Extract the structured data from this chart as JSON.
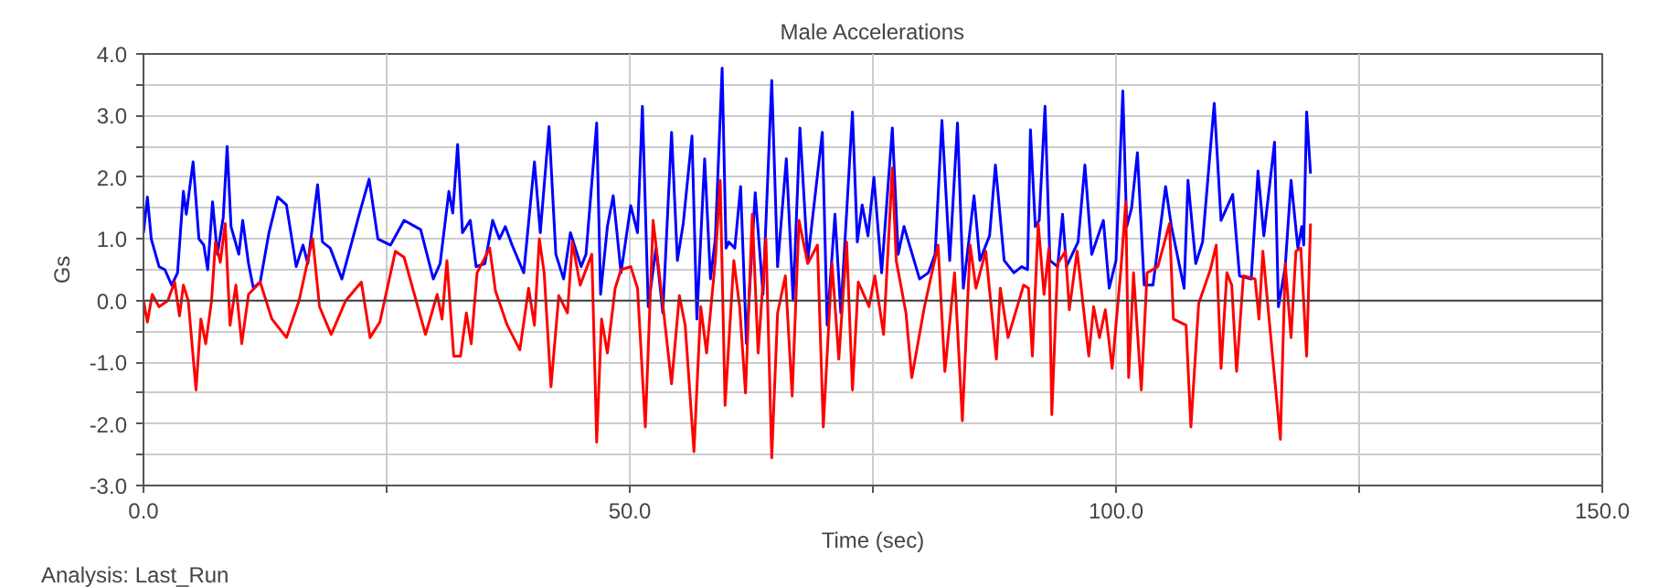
{
  "chart_data": {
    "type": "line",
    "title": "Male Accelerations",
    "xlabel": "Time (sec)",
    "ylabel": "Gs",
    "annotations": [
      "Analysis:  Last_Run"
    ],
    "xlim": [
      0,
      150
    ],
    "ylim": [
      -3,
      4
    ],
    "xticks": [
      {
        "value": 0,
        "label": "0.0"
      },
      {
        "value": 25,
        "label": null
      },
      {
        "value": 50,
        "label": "50.0"
      },
      {
        "value": 75,
        "label": null
      },
      {
        "value": 100,
        "label": "100.0"
      },
      {
        "value": 125,
        "label": null
      },
      {
        "value": 150,
        "label": "150.0"
      }
    ],
    "yticks": [
      {
        "value": -3,
        "label": "-3.0"
      },
      {
        "value": -2.5,
        "label": null
      },
      {
        "value": -2,
        "label": "-2.0"
      },
      {
        "value": -1.5,
        "label": null
      },
      {
        "value": -1,
        "label": "-1.0"
      },
      {
        "value": -0.5,
        "label": null
      },
      {
        "value": 0,
        "label": "0.0"
      },
      {
        "value": 0.5,
        "label": null
      },
      {
        "value": 1,
        "label": "1.0"
      },
      {
        "value": 1.5,
        "label": null
      },
      {
        "value": 2,
        "label": "2.0"
      },
      {
        "value": 2.5,
        "label": null
      },
      {
        "value": 3,
        "label": "3.0"
      },
      {
        "value": 3.5,
        "label": null
      },
      {
        "value": 4,
        "label": "4.0"
      }
    ],
    "grid": true,
    "ref_lines": [
      {
        "axis": "y",
        "value": 0,
        "label": null,
        "color": "#404040"
      }
    ],
    "series": [
      {
        "color": "#0000ff",
        "x": [
          0,
          0.4,
          0.8,
          1.6,
          2.2,
          2.9,
          3.5,
          4.1,
          4.4,
          5.1,
          5.7,
          6.2,
          6.6,
          7.1,
          7.6,
          8.2,
          8.6,
          9.0,
          9.8,
          10.2,
          10.8,
          11.3,
          12.0,
          12.9,
          13.8,
          14.7,
          15.7,
          16.4,
          16.9,
          17.9,
          18.4,
          19.2,
          20.4,
          22.1,
          23.2,
          24.1,
          25.4,
          26.8,
          28.5,
          29.8,
          30.5,
          31.4,
          31.8,
          32.3,
          32.8,
          33.6,
          34.2,
          35.1,
          35.9,
          36.6,
          37.2,
          37.9,
          39.1,
          40.2,
          40.8,
          41.7,
          42.4,
          43.2,
          43.9,
          45.0,
          45.5,
          46.6,
          47.0,
          47.7,
          48.3,
          49.1,
          50.1,
          50.8,
          51.3,
          51.9,
          52.7,
          53.4,
          54.3,
          54.9,
          55.5,
          56.4,
          56.9,
          57.7,
          58.3,
          58.8,
          59.5,
          59.9,
          60.2,
          60.8,
          61.4,
          62.0,
          62.9,
          63.7,
          64.6,
          65.2,
          66.1,
          66.8,
          67.5,
          68.3,
          69.8,
          70.3,
          71.1,
          71.7,
          72.9,
          73.4,
          73.9,
          74.5,
          75.1,
          75.9,
          77.0,
          77.6,
          78.2,
          79.8,
          80.7,
          81.4,
          82.1,
          82.9,
          83.7,
          84.3,
          85.4,
          86.0,
          87.0,
          87.6,
          88.5,
          89.5,
          90.3,
          90.9,
          91.2,
          91.7,
          92.1,
          92.7,
          93.2,
          94.0,
          94.5,
          94.9,
          96.1,
          96.8,
          97.5,
          98.7,
          99.3,
          100.0,
          100.7,
          101.1,
          101.6,
          102.2,
          102.9,
          103.8,
          105.1,
          105.7,
          107.0,
          107.4,
          108.2,
          108.9,
          110.1,
          110.8,
          112.0,
          112.7,
          113.9,
          114.6,
          115.2,
          116.3,
          116.7,
          117.4,
          118.0,
          118.7,
          119.1,
          119.3,
          119.6,
          120.0
        ],
        "values": [
          1.1,
          1.68,
          1.0,
          0.55,
          0.5,
          0.25,
          0.45,
          1.77,
          1.4,
          2.25,
          1.0,
          0.9,
          0.5,
          1.6,
          0.75,
          1.35,
          2.5,
          1.2,
          0.75,
          1.3,
          0.6,
          0.2,
          0.3,
          1.1,
          1.68,
          1.55,
          0.55,
          0.9,
          0.6,
          1.88,
          0.95,
          0.85,
          0.35,
          1.35,
          1.97,
          1.0,
          0.9,
          1.3,
          1.15,
          0.35,
          0.6,
          1.77,
          1.42,
          2.53,
          1.1,
          1.3,
          0.55,
          0.6,
          1.3,
          1.0,
          1.2,
          0.9,
          0.45,
          2.25,
          1.1,
          2.82,
          0.75,
          0.35,
          1.1,
          0.55,
          0.75,
          2.88,
          0.1,
          1.2,
          1.7,
          0.45,
          1.54,
          1.1,
          3.15,
          -0.1,
          0.85,
          -0.2,
          2.73,
          0.65,
          1.25,
          2.67,
          -0.3,
          2.3,
          0.35,
          1.0,
          3.77,
          0.85,
          0.95,
          0.85,
          1.85,
          -0.7,
          1.75,
          0.1,
          3.57,
          0.55,
          2.3,
          0.0,
          2.8,
          0.65,
          2.73,
          -0.4,
          1.4,
          -0.2,
          3.06,
          0.95,
          1.55,
          1.05,
          2.0,
          0.45,
          2.8,
          0.75,
          1.2,
          0.35,
          0.45,
          0.75,
          2.92,
          0.65,
          2.88,
          0.2,
          1.7,
          0.65,
          1.05,
          2.2,
          0.65,
          0.45,
          0.55,
          0.5,
          2.77,
          1.2,
          1.3,
          3.15,
          0.65,
          0.55,
          1.4,
          0.55,
          0.95,
          2.2,
          0.75,
          1.3,
          0.2,
          0.65,
          3.4,
          1.2,
          1.5,
          2.4,
          0.25,
          0.25,
          1.85,
          1.2,
          0.2,
          1.95,
          0.6,
          0.95,
          3.2,
          1.3,
          1.72,
          0.4,
          0.35,
          2.1,
          1.05,
          2.57,
          -0.1,
          0.55,
          1.95,
          0.85,
          1.2,
          0.9,
          3.06,
          2.06
        ]
      },
      {
        "color": "#ff0000",
        "x": [
          0,
          0.4,
          0.9,
          1.6,
          2.5,
          3.2,
          3.7,
          4.1,
          4.6,
          5.4,
          5.9,
          6.4,
          7.0,
          7.4,
          7.9,
          8.4,
          8.9,
          9.5,
          10.1,
          10.8,
          12.0,
          13.2,
          14.7,
          16.0,
          17.1,
          17.4,
          18.1,
          19.3,
          20.8,
          22.4,
          23.3,
          24.3,
          25.9,
          26.8,
          29.0,
          30.2,
          30.7,
          31.2,
          31.9,
          32.6,
          33.2,
          33.7,
          34.3,
          35.6,
          36.2,
          37.4,
          38.7,
          39.6,
          40.2,
          40.7,
          41.2,
          41.9,
          42.7,
          43.6,
          44.1,
          44.9,
          46.1,
          46.6,
          47.1,
          47.7,
          48.5,
          49.1,
          50.1,
          50.8,
          51.6,
          52.4,
          53.3,
          54.3,
          55.1,
          55.7,
          56.6,
          57.3,
          57.9,
          58.8,
          59.3,
          59.8,
          60.7,
          61.3,
          61.9,
          62.6,
          63.2,
          64.0,
          64.6,
          65.2,
          66.0,
          66.7,
          67.4,
          68.3,
          69.3,
          69.9,
          70.8,
          71.5,
          72.3,
          72.9,
          73.5,
          74.6,
          75.2,
          76.1,
          77.0,
          77.4,
          78.4,
          79.0,
          80.3,
          81.7,
          82.4,
          83.4,
          84.2,
          85.0,
          85.6,
          86.6,
          87.7,
          88.1,
          88.9,
          90.5,
          91.0,
          91.4,
          92.0,
          92.6,
          93.1,
          93.4,
          94.0,
          94.8,
          95.2,
          96.0,
          97.2,
          97.7,
          98.3,
          98.9,
          99.6,
          100.5,
          101.0,
          101.3,
          101.8,
          102.6,
          103.2,
          104.3,
          105.5,
          105.9,
          107.2,
          107.7,
          108.5,
          109.7,
          110.3,
          110.8,
          111.4,
          111.9,
          112.4,
          113.1,
          114.3,
          114.7,
          115.1,
          115.8,
          116.9,
          117.4,
          118.0,
          118.5,
          119.0,
          119.6,
          120.0
        ],
        "values": [
          0.0,
          -0.35,
          0.1,
          -0.1,
          0.0,
          0.3,
          -0.25,
          0.25,
          0.0,
          -1.45,
          -0.3,
          -0.7,
          0.0,
          0.95,
          0.62,
          1.25,
          -0.4,
          0.25,
          -0.7,
          0.1,
          0.3,
          -0.3,
          -0.6,
          0.0,
          0.8,
          1.0,
          -0.1,
          -0.55,
          0.0,
          0.3,
          -0.6,
          -0.35,
          0.8,
          0.7,
          -0.55,
          0.1,
          -0.3,
          0.65,
          -0.9,
          -0.9,
          -0.2,
          -0.7,
          0.45,
          0.85,
          0.15,
          -0.4,
          -0.8,
          0.2,
          -0.4,
          1.0,
          0.45,
          -1.4,
          0.08,
          -0.2,
          0.95,
          0.25,
          0.75,
          -2.3,
          -0.3,
          -0.85,
          0.2,
          0.5,
          0.55,
          0.2,
          -2.05,
          1.3,
          0.08,
          -1.35,
          0.08,
          -0.4,
          -2.45,
          -0.1,
          -0.85,
          0.65,
          1.95,
          -1.7,
          0.65,
          -0.1,
          -1.5,
          1.4,
          -0.85,
          1.0,
          -2.55,
          -0.2,
          0.4,
          -1.55,
          1.3,
          0.6,
          0.9,
          -2.05,
          0.6,
          -0.95,
          0.95,
          -1.45,
          0.3,
          -0.1,
          0.4,
          -0.55,
          2.15,
          0.65,
          -0.2,
          -1.25,
          -0.1,
          0.9,
          -1.15,
          0.45,
          -1.95,
          0.9,
          0.2,
          0.8,
          -0.95,
          0.2,
          -0.6,
          0.25,
          0.2,
          -0.9,
          1.25,
          0.1,
          0.85,
          -1.85,
          0.6,
          0.8,
          -0.15,
          0.8,
          -0.9,
          -0.1,
          -0.6,
          -0.15,
          -1.1,
          0.5,
          1.6,
          -1.25,
          0.45,
          -1.45,
          0.45,
          0.55,
          1.25,
          -0.3,
          -0.4,
          -2.05,
          -0.05,
          0.5,
          0.9,
          -1.1,
          0.45,
          0.25,
          -1.15,
          0.4,
          0.35,
          -0.3,
          0.8,
          -0.4,
          -2.25,
          0.6,
          -0.6,
          0.8,
          0.85,
          -0.9,
          1.25
        ]
      }
    ]
  }
}
